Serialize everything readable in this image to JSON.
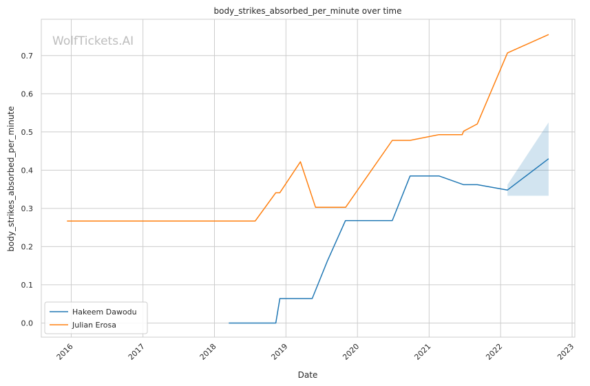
{
  "chart_data": {
    "type": "line",
    "title": "body_strikes_absorbed_per_minute over time",
    "xlabel": "Date",
    "ylabel": "body_strikes_absorbed_per_minute",
    "watermark": "WolfTickets.AI",
    "x_ticks": [
      "2016",
      "2017",
      "2018",
      "2019",
      "2020",
      "2021",
      "2022",
      "2023"
    ],
    "y_ticks": [
      "0.0",
      "0.1",
      "0.2",
      "0.3",
      "0.4",
      "0.5",
      "0.6",
      "0.7"
    ],
    "xlim": [
      "2015-08-01",
      "2023-01-15"
    ],
    "ylim": [
      -0.037,
      0.795
    ],
    "grid": true,
    "legend_position": "lower-left",
    "series": [
      {
        "name": "Hakeem Dawodu",
        "color": "#1f77b4",
        "points": [
          [
            "2018-03-15",
            0.0
          ],
          [
            "2018-11-10",
            0.0
          ],
          [
            "2018-12-01",
            0.064
          ],
          [
            "2019-05-15",
            0.064
          ],
          [
            "2019-08-01",
            0.163
          ],
          [
            "2019-11-01",
            0.268
          ],
          [
            "2020-06-27",
            0.268
          ],
          [
            "2020-09-26",
            0.385
          ],
          [
            "2021-02-20",
            0.385
          ],
          [
            "2021-06-26",
            0.362
          ],
          [
            "2021-09-04",
            0.362
          ],
          [
            "2022-02-05",
            0.348
          ],
          [
            "2022-09-03",
            0.43
          ]
        ],
        "band": {
          "x": [
            "2022-02-05",
            "2022-09-03"
          ],
          "lower": [
            0.333,
            0.333
          ],
          "upper": [
            0.362,
            0.525
          ]
        }
      },
      {
        "name": "Julian Erosa",
        "color": "#ff7f0e",
        "points": [
          [
            "2015-12-10",
            0.267
          ],
          [
            "2018-07-28",
            0.267
          ],
          [
            "2018-11-10",
            0.341
          ],
          [
            "2018-12-01",
            0.341
          ],
          [
            "2019-03-16",
            0.422
          ],
          [
            "2019-06-01",
            0.303
          ],
          [
            "2019-11-02",
            0.303
          ],
          [
            "2020-06-27",
            0.478
          ],
          [
            "2020-09-26",
            0.478
          ],
          [
            "2021-02-20",
            0.493
          ],
          [
            "2021-06-19",
            0.493
          ],
          [
            "2021-06-26",
            0.502
          ],
          [
            "2021-09-04",
            0.521
          ],
          [
            "2022-02-05",
            0.707
          ],
          [
            "2022-09-03",
            0.755
          ]
        ]
      }
    ]
  }
}
